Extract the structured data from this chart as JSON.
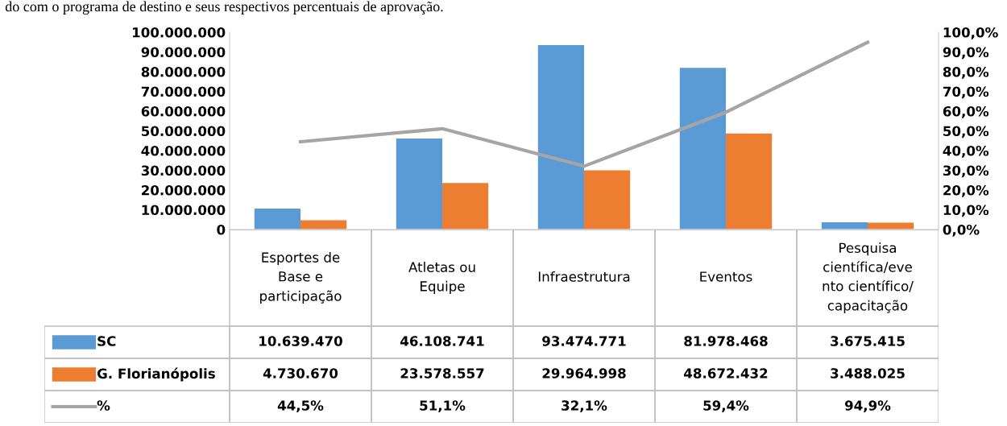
{
  "chart_data": {
    "type": "bar",
    "categories": [
      "Esportes de\nBase e\nparticipação",
      "Atletas ou\nEquipe",
      "Infraestrutura",
      "Eventos",
      "Pesquisa\ncientífica/eve\nnto científico/\ncapacitação"
    ],
    "series": [
      {
        "name": "SC",
        "color": "#5b9bd5",
        "values": [
          10639470,
          46108741,
          93474771,
          81978468,
          3675415
        ],
        "value_labels": [
          "10.639.470",
          "46.108.741",
          "93.474.771",
          "81.978.468",
          "3.675.415"
        ]
      },
      {
        "name": "G. Florianópolis",
        "color": "#ed7d31",
        "values": [
          4730670,
          23578557,
          29964998,
          48672432,
          3488025
        ],
        "value_labels": [
          "4.730.670",
          "23.578.557",
          "29.964.998",
          "48.672.432",
          "3.488.025"
        ]
      },
      {
        "name": "%",
        "type": "line",
        "axis": "y2",
        "color": "#a5a5a5",
        "values": [
          44.5,
          51.1,
          32.1,
          59.4,
          94.9
        ],
        "value_labels": [
          "44,5%",
          "51,1%",
          "32,1%",
          "59,4%",
          "94,9%"
        ]
      }
    ],
    "ylim": [
      0,
      100000000
    ],
    "yticks": [
      {
        "value": 0,
        "label": "0"
      },
      {
        "value": 10000000,
        "label": "10.000.000"
      },
      {
        "value": 20000000,
        "label": "20.000.000"
      },
      {
        "value": 30000000,
        "label": "30.000.000"
      },
      {
        "value": 40000000,
        "label": "40.000.000"
      },
      {
        "value": 50000000,
        "label": "50.000.000"
      },
      {
        "value": 60000000,
        "label": "60.000.000"
      },
      {
        "value": 70000000,
        "label": "70.000.000"
      },
      {
        "value": 80000000,
        "label": "80.000.000"
      },
      {
        "value": 90000000,
        "label": "90.000.000"
      },
      {
        "value": 100000000,
        "label": "100.000.000"
      }
    ],
    "y2lim": [
      0,
      100
    ],
    "y2ticks": [
      {
        "value": 0,
        "label": "0,0%"
      },
      {
        "value": 10,
        "label": "10,0%"
      },
      {
        "value": 20,
        "label": "20,0%"
      },
      {
        "value": 30,
        "label": "30,0%"
      },
      {
        "value": 40,
        "label": "40,0%"
      },
      {
        "value": 50,
        "label": "50,0%"
      },
      {
        "value": 60,
        "label": "60,0%"
      },
      {
        "value": 70,
        "label": "70,0%"
      },
      {
        "value": 80,
        "label": "80,0%"
      },
      {
        "value": 90,
        "label": "90,0%"
      },
      {
        "value": 100,
        "label": "100,0%"
      }
    ],
    "legend": "bottom",
    "grid": false,
    "annotations": [
      "do com o programa de destino e seus respectivos percentuais de aprovação."
    ]
  }
}
